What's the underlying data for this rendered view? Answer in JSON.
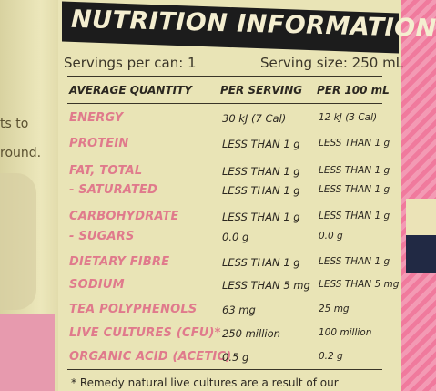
{
  "left_fragments": [
    "ts to",
    "round."
  ],
  "title": "NUTRITION INFORMATION",
  "servings_per_can": "Servings per can: 1",
  "serving_size": "Serving size: 250 mL",
  "headers": {
    "quantity": "AVERAGE QUANTITY",
    "per_serving": "PER SERVING",
    "per_100": "PER 100 mL"
  },
  "rows": [
    {
      "label": "ENERGY",
      "serving": "30 kJ (7 Cal)",
      "per100": "12 kJ (3 Cal)"
    },
    {
      "label": "PROTEIN",
      "serving": "LESS THAN 1 g",
      "per100": "LESS THAN 1 g"
    },
    {
      "label": "FAT, TOTAL",
      "serving": "LESS THAN 1 g",
      "per100": "LESS THAN 1 g"
    },
    {
      "label": "- SATURATED",
      "serving": "LESS THAN 1 g",
      "per100": "LESS THAN 1 g"
    },
    {
      "label": "CARBOHYDRATE",
      "serving": "LESS THAN 1 g",
      "per100": "LESS THAN 1 g"
    },
    {
      "label": "- SUGARS",
      "serving": "0.0 g",
      "per100": "0.0 g"
    },
    {
      "label": "DIETARY FIBRE",
      "serving": "LESS THAN 1 g",
      "per100": "LESS THAN 1 g"
    },
    {
      "label": "SODIUM",
      "serving": "LESS THAN 5 mg",
      "per100": "LESS THAN 5 mg"
    },
    {
      "label": "TEA POLYPHENOLS",
      "serving": "63 mg",
      "per100": "25 mg"
    },
    {
      "label": "LIVE CULTURES (CFU)*",
      "serving": "250 million",
      "per100": "100 million"
    },
    {
      "label": "ORGANIC ACID (ACETIC)",
      "serving": "0.5 g",
      "per100": "0.2 g"
    }
  ],
  "footnote": "* Remedy natural live cultures are a result of our"
}
